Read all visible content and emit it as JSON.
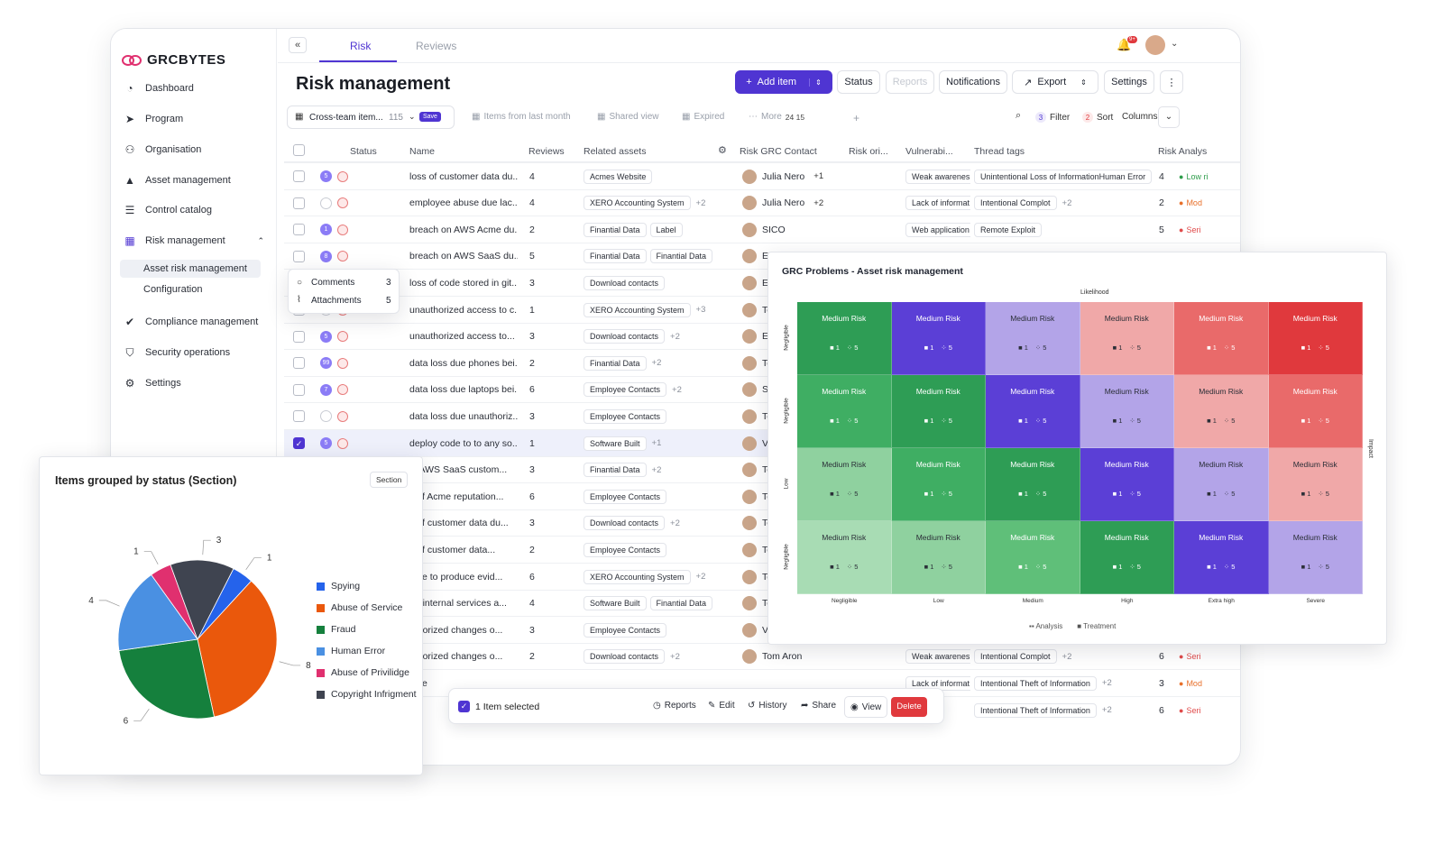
{
  "app": {
    "brand": "GRCBYTES",
    "collapse_icon": "«"
  },
  "sidebar": {
    "items": [
      {
        "label": "Dashboard",
        "icon": "dashboard-icon"
      },
      {
        "label": "Program",
        "icon": "send-icon"
      },
      {
        "label": "Organisation",
        "icon": "people-icon"
      },
      {
        "label": "Asset management",
        "icon": "shapes-icon"
      },
      {
        "label": "Control catalog",
        "icon": "sliders-icon"
      },
      {
        "label": "Risk management",
        "icon": "grid-icon"
      }
    ],
    "sub_items": [
      "Asset risk management",
      "Configuration"
    ],
    "items_bottom": [
      {
        "label": "Compliance management",
        "icon": "check-badge-icon"
      },
      {
        "label": "Security operations",
        "icon": "shield-icon"
      },
      {
        "label": "Settings",
        "icon": "gear-icon"
      }
    ]
  },
  "tabs": [
    "Risk",
    "Reviews"
  ],
  "notification_badge": "9+",
  "page": {
    "title": "Risk management"
  },
  "actions": {
    "add_item": "Add item",
    "status": "Status",
    "reports": "Reports",
    "notifications": "Notifications",
    "export": "Export",
    "settings": "Settings"
  },
  "toolbar": {
    "view_name": "Cross-team item...",
    "view_count": "115",
    "save": "Save",
    "views": [
      "Items from last month",
      "Shared view",
      "Expired"
    ],
    "more": "More",
    "more_counts": "24  15",
    "filter_count": "3",
    "filter": "Filter",
    "sort_count": "2",
    "sort": "Sort",
    "columns": "Columns"
  },
  "columns": [
    "Status",
    "Name",
    "Reviews",
    "Related assets",
    "Risk GRC Contact",
    "Risk ori...",
    "Vulnerabi...",
    "Thread tags",
    "Risk Analys"
  ],
  "rows": [
    {
      "badge": "5",
      "name": "loss of customer data du...",
      "reviews": "4",
      "assets": [
        "Acmes Website"
      ],
      "assets_more": "",
      "contact": "Julia Nero",
      "contact_more": "+1",
      "vuln": "Weak awarenes",
      "tags": [
        "Unintentional Loss of InformationHuman Error"
      ],
      "tags_more": "",
      "ra_num": "4",
      "ra": "Low ri",
      "ra_color": "#2e9d4b"
    },
    {
      "badge": "",
      "name": "employee abuse due lac...",
      "reviews": "4",
      "assets": [
        "XERO Accounting System"
      ],
      "assets_more": "+2",
      "contact": "Julia Nero",
      "contact_more": "+2",
      "vuln": "Lack of informat",
      "tags": [
        "Intentional Complot"
      ],
      "tags_more": "+2",
      "ra_num": "2",
      "ra": "Mod",
      "ra_color": "#e8702a"
    },
    {
      "badge": "1",
      "name": "breach on AWS Acme du...",
      "reviews": "2",
      "assets": [
        "Finantial Data",
        "Label"
      ],
      "assets_more": "",
      "contact": "SICO",
      "contact_more": "",
      "vuln": "Web application",
      "tags": [
        "Remote Exploit"
      ],
      "tags_more": "",
      "ra_num": "5",
      "ra": "Seri",
      "ra_color": "#e04b4b"
    },
    {
      "badge": "8",
      "name": "breach on AWS SaaS du...",
      "reviews": "5",
      "assets": [
        "Finantial Data",
        "Finantial Data"
      ],
      "assets_more": "",
      "contact": "Er",
      "contact_more": "",
      "vuln": "",
      "tags": [],
      "tags_more": "",
      "ra_num": "",
      "ra": "",
      "ra_color": ""
    },
    {
      "badge": "",
      "name": "loss of code stored in git...",
      "reviews": "3",
      "assets": [
        "Download contacts"
      ],
      "assets_more": "",
      "contact": "Er",
      "contact_more": "",
      "vuln": "",
      "tags": [],
      "tags_more": "",
      "ra_num": "",
      "ra": "",
      "ra_color": ""
    },
    {
      "badge": "",
      "name": "unauthorized access to c...",
      "reviews": "1",
      "assets": [
        "XERO Accounting System"
      ],
      "assets_more": "+3",
      "contact": "Te",
      "contact_more": "",
      "vuln": "",
      "tags": [],
      "tags_more": "",
      "ra_num": "",
      "ra": "",
      "ra_color": ""
    },
    {
      "badge": "5",
      "name": "unauthorized access to...",
      "reviews": "3",
      "assets": [
        "Download contacts"
      ],
      "assets_more": "+2",
      "contact": "Er",
      "contact_more": "",
      "vuln": "",
      "tags": [],
      "tags_more": "",
      "ra_num": "",
      "ra": "",
      "ra_color": ""
    },
    {
      "badge": "99",
      "name": "data loss due phones bei...",
      "reviews": "2",
      "assets": [
        "Finantial Data"
      ],
      "assets_more": "+2",
      "contact": "Te",
      "contact_more": "",
      "vuln": "",
      "tags": [],
      "tags_more": "",
      "ra_num": "",
      "ra": "",
      "ra_color": ""
    },
    {
      "badge": "7",
      "name": "data loss due laptops bei...",
      "reviews": "6",
      "assets": [
        "Employee Contacts"
      ],
      "assets_more": "+2",
      "contact": "Si",
      "contact_more": "",
      "vuln": "",
      "tags": [],
      "tags_more": "",
      "ra_num": "",
      "ra": "",
      "ra_color": ""
    },
    {
      "badge": "",
      "name": "data loss due unauthoriz...",
      "reviews": "3",
      "assets": [
        "Employee Contacts"
      ],
      "assets_more": "",
      "contact": "Te",
      "contact_more": "",
      "vuln": "",
      "tags": [],
      "tags_more": "",
      "ra_num": "",
      "ra": "",
      "ra_color": ""
    },
    {
      "badge": "5",
      "name": "deploy code to to any so...",
      "reviews": "1",
      "assets": [
        "Software Built"
      ],
      "assets_more": "+1",
      "contact": "Ve",
      "contact_more": "",
      "vuln": "",
      "tags": [],
      "tags_more": "",
      "ra_num": "",
      "ra": "",
      "ra_color": ""
    },
    {
      "badge": "",
      "name": "ct AWS SaaS custom...",
      "reviews": "3",
      "assets": [
        "Finantial Data"
      ],
      "assets_more": "+2",
      "contact": "Te",
      "contact_more": "",
      "vuln": "",
      "tags": [],
      "tags_more": "",
      "ra_num": "",
      "ra": "",
      "ra_color": ""
    },
    {
      "badge": "",
      "name": "s of Acme reputation...",
      "reviews": "6",
      "assets": [
        "Employee Contacts"
      ],
      "assets_more": "",
      "contact": "Te",
      "contact_more": "",
      "vuln": "",
      "tags": [],
      "tags_more": "",
      "ra_num": "",
      "ra": "",
      "ra_color": ""
    },
    {
      "badge": "",
      "name": "s of customer data du...",
      "reviews": "3",
      "assets": [
        "Download contacts"
      ],
      "assets_more": "+2",
      "contact": "Te",
      "contact_more": "",
      "vuln": "",
      "tags": [],
      "tags_more": "",
      "ra_num": "",
      "ra": "",
      "ra_color": ""
    },
    {
      "badge": "",
      "name": "s of customer data...",
      "reviews": "2",
      "assets": [
        "Employee Contacts"
      ],
      "assets_more": "",
      "contact": "Te",
      "contact_more": "",
      "vuln": "",
      "tags": [],
      "tags_more": "",
      "ra_num": "",
      "ra": "",
      "ra_color": ""
    },
    {
      "badge": "",
      "name": "able to produce evid...",
      "reviews": "6",
      "assets": [
        "XERO Accounting System"
      ],
      "assets_more": "+2",
      "contact": "Te",
      "contact_more": "",
      "vuln": "",
      "tags": [],
      "tags_more": "",
      "ra_num": "",
      "ra": "",
      "ra_color": ""
    },
    {
      "badge": "",
      "name": "ne internal services a...",
      "reviews": "4",
      "assets": [
        "Software Built",
        "Finantial Data"
      ],
      "assets_more": "",
      "contact": "Te",
      "contact_more": "",
      "vuln": "",
      "tags": [],
      "tags_more": "",
      "ra_num": "",
      "ra": "",
      "ra_color": ""
    },
    {
      "badge": "",
      "name": "uthorized changes o...",
      "reviews": "3",
      "assets": [
        "Employee Contacts"
      ],
      "assets_more": "",
      "contact": "Ve",
      "contact_more": "",
      "vuln": "",
      "tags": [],
      "tags_more": "",
      "ra_num": "",
      "ra": "",
      "ra_color": ""
    },
    {
      "badge": "",
      "name": "uthorized changes o...",
      "reviews": "2",
      "assets": [
        "Download contacts"
      ],
      "assets_more": "+2",
      "contact": "Tom Aron",
      "contact_more": "",
      "vuln": "Weak awarenes",
      "tags": [
        "Intentional Complot"
      ],
      "tags_more": "+2",
      "ra_num": "6",
      "ra": "Seri",
      "ra_color": "#e04b4b"
    },
    {
      "badge": "",
      "name": "able",
      "reviews": "",
      "assets": [],
      "assets_more": "",
      "contact": "",
      "contact_more": "",
      "vuln": "Lack of informat",
      "tags": [
        "Intentional Theft of Information"
      ],
      "tags_more": "+2",
      "ra_num": "3",
      "ra": "Mod",
      "ra_color": "#e8702a"
    },
    {
      "badge": "",
      "name": "abl",
      "reviews": "",
      "assets": [],
      "assets_more": "",
      "contact": "",
      "contact_more": "",
      "vuln": "arenes",
      "tags": [
        "Intentional Theft of Information"
      ],
      "tags_more": "+2",
      "ra_num": "6",
      "ra": "Seri",
      "ra_color": "#e04b4b"
    }
  ],
  "comments_popup": {
    "comments": "Comments",
    "comments_count": "3",
    "attachments": "Attachments",
    "attachments_count": "5"
  },
  "heatmap": {
    "title": "GRC Problems - Asset risk management",
    "x_title": "Likelihood",
    "y_title": "Impact",
    "x_labels": [
      "Negligible",
      "Low",
      "Medium",
      "High",
      "Extra high",
      "Severe"
    ],
    "y_labels": [
      "Negligible",
      "Negligible",
      "Low",
      "Negligible"
    ],
    "cell_label": "Medium Risk",
    "cell_n1": "1",
    "cell_n2": "5",
    "colors": [
      [
        "#2e9d55",
        "#5b3fd6",
        "#b3a4e8",
        "#f0a8a8",
        "#e96a6a",
        "#e0393d"
      ],
      [
        "#3fae63",
        "#2e9d55",
        "#5b3fd6",
        "#b3a4e8",
        "#f0a8a8",
        "#e96a6a"
      ],
      [
        "#8fd19f",
        "#3fae63",
        "#2e9d55",
        "#5b3fd6",
        "#b3a4e8",
        "#f0a8a8"
      ],
      [
        "#a8dcb4",
        "#8fd19f",
        "#5fbf79",
        "#2e9d55",
        "#5b3fd6",
        "#b3a4e8"
      ]
    ],
    "legend": [
      "Analysis",
      "Treatment"
    ]
  },
  "pie_panel": {
    "title": "Items grouped by status (Section)",
    "badge": "Section"
  },
  "chart_data": {
    "type": "pie",
    "title": "Items grouped by status (Section)",
    "categories": [
      "Spying",
      "Abuse of  Service",
      "Fraud",
      "Human Error",
      "Abuse of Privilidge",
      "Copyright Infrigment"
    ],
    "values": [
      1,
      8,
      6,
      4,
      1,
      3
    ],
    "colors": [
      "#2563eb",
      "#ea580c",
      "#15803d",
      "#4a90e2",
      "#e0306f",
      "#3f4450"
    ],
    "legend": "right"
  },
  "selection_bar": {
    "selected": "1 Item selected",
    "reports": "Reports",
    "edit": "Edit",
    "history": "History",
    "share": "Share",
    "view": "View",
    "delete": "Delete"
  }
}
